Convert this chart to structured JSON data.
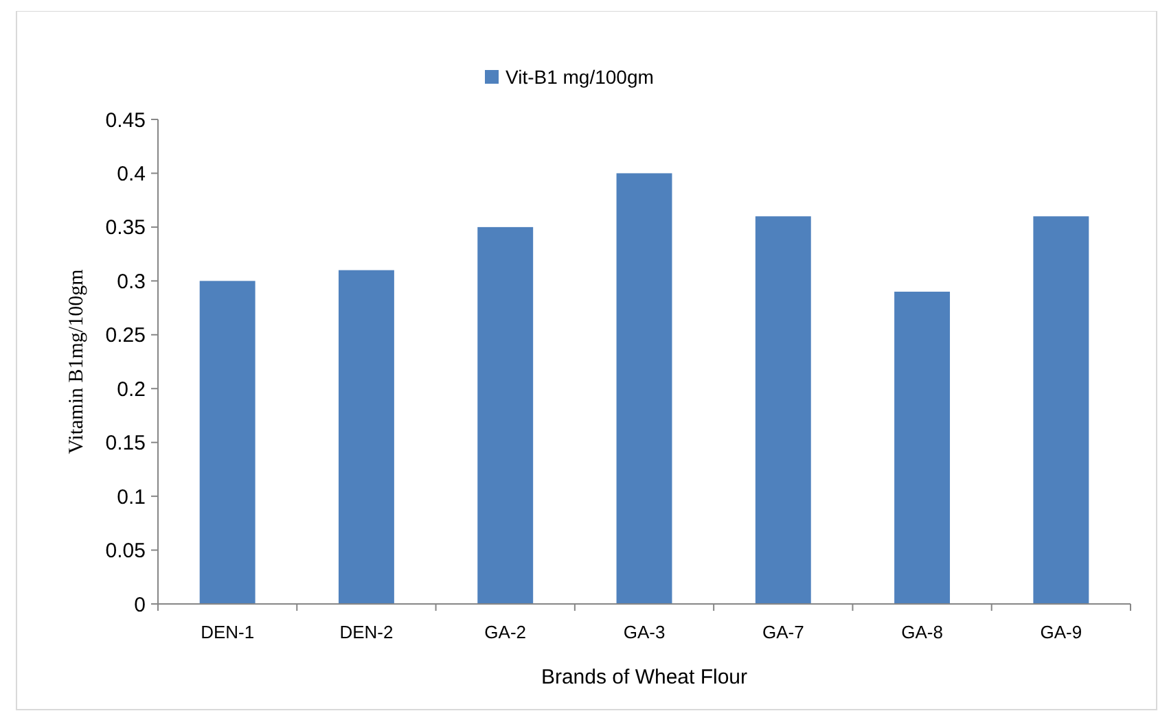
{
  "chart_data": {
    "type": "bar",
    "xlabel": "Brands of Wheat Flour",
    "ylabel": "Vitamin B1mg/100gm",
    "categories": [
      "DEN-1",
      "DEN-2",
      "GA-2",
      "GA-3",
      "GA-7",
      "GA-8",
      "GA-9"
    ],
    "series": [
      {
        "name": "Vit-B1 mg/100gm",
        "color": "#4f81bd",
        "values": [
          0.3,
          0.31,
          0.35,
          0.4,
          0.36,
          0.29,
          0.36
        ]
      }
    ],
    "ylim": [
      0,
      0.45
    ],
    "yticks": [
      0,
      0.05,
      0.1,
      0.15,
      0.2,
      0.25,
      0.3,
      0.35,
      0.4,
      0.45
    ],
    "grid": false,
    "legend": "top"
  }
}
